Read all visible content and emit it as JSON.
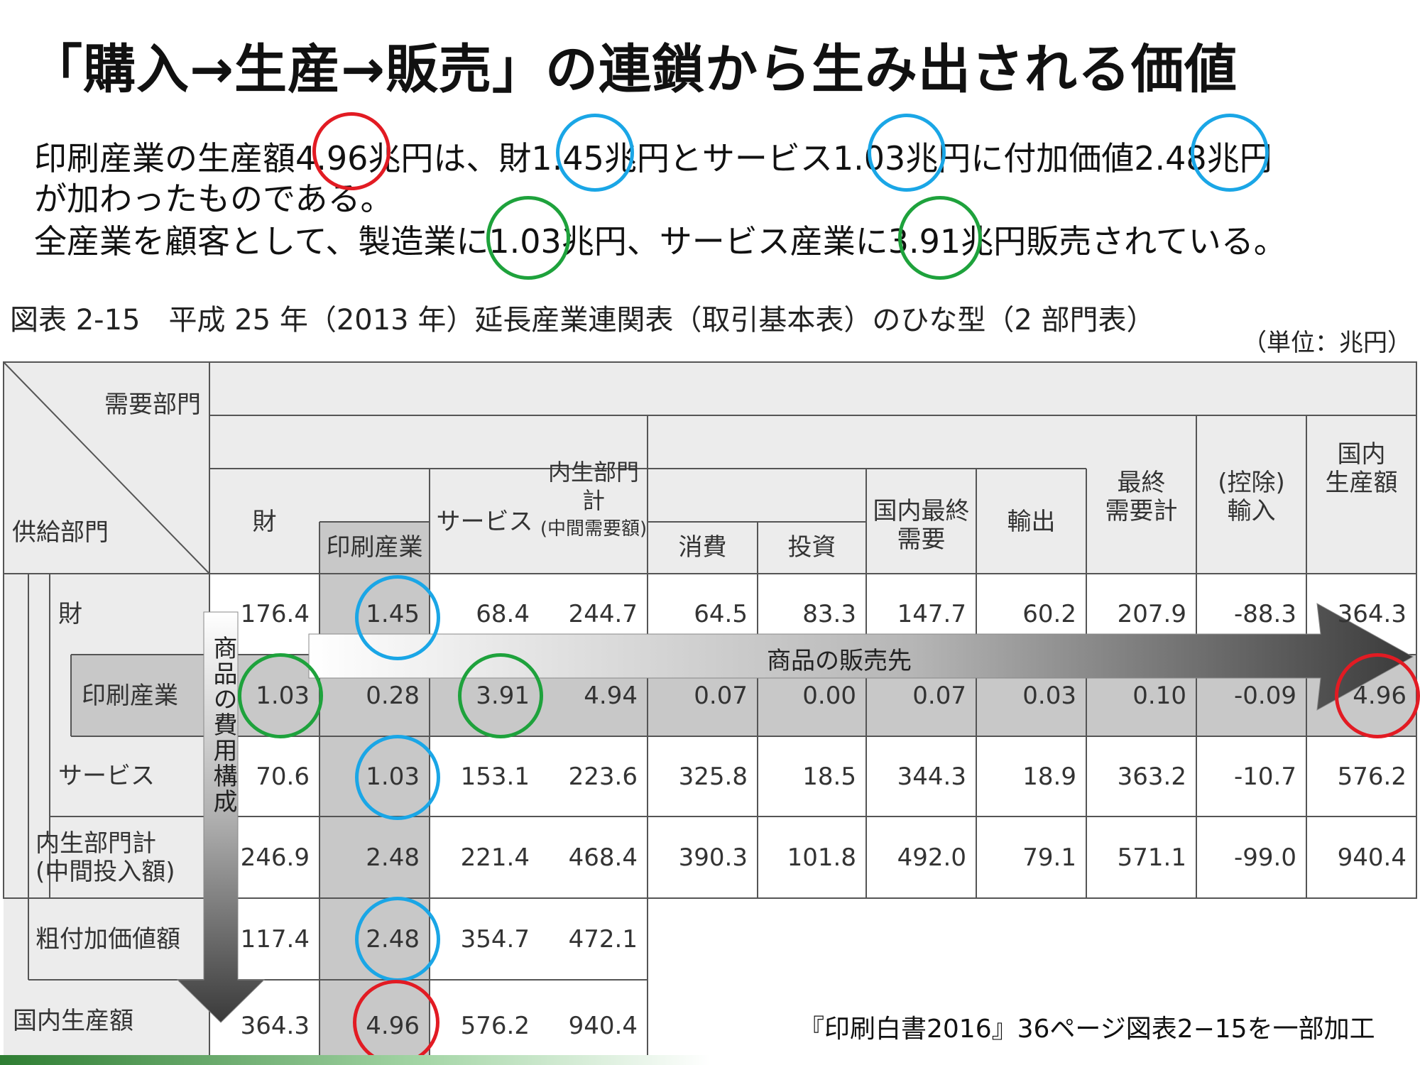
{
  "title": "「購入→生産→販売」の連鎖から生み出される価値",
  "paragraph": {
    "line1_a": "印刷産業の生産額",
    "line1_v1": "4.96",
    "line1_b": "兆円は、財",
    "line1_v2": "1.45",
    "line1_c": "兆円とサービス",
    "line1_v3": "1.03",
    "line1_d": "兆円に付加価値",
    "line1_v4": "2.48",
    "line1_e": "兆円",
    "line2": "が加わったものである。",
    "line3_a": "全産業を顧客として、製造業に",
    "line3_v1": "1.03",
    "line3_b": "兆円、サービス産業に",
    "line3_v2": "3.91",
    "line3_c": "兆円販売されている。"
  },
  "caption": "図表 2-15　平成 25 年（2013 年）延長産業連関表（取引基本表）のひな型（2 部門表）",
  "unit": "（単位：兆円）",
  "table": {
    "corner_demand": "需要部門",
    "corner_supply": "供給部門",
    "col_zai": "財",
    "col_insatsu": "印刷産業",
    "col_service": "サービス",
    "col_naisei_1": "内生部門計",
    "col_naisei_2": "(中間需要額)",
    "col_shohi": "消費",
    "col_toshi": "投資",
    "col_kokunai_final_1": "国内最終",
    "col_kokunai_final_2": "需要",
    "col_yushutsu": "輸出",
    "col_final_total_1": "最終",
    "col_final_total_2": "需要計",
    "col_import_1": "(控除)",
    "col_import_2": "輸入",
    "col_domestic_1": "国内",
    "col_domestic_2": "生産額",
    "rows": [
      {
        "label": "財",
        "values": [
          "176.4",
          "1.45",
          "68.4",
          "244.7",
          "64.5",
          "83.3",
          "147.7",
          "60.2",
          "207.9",
          "-88.3",
          "364.3"
        ]
      },
      {
        "label": "印刷産業",
        "values": [
          "1.03",
          "0.28",
          "3.91",
          "4.94",
          "0.07",
          "0.00",
          "0.07",
          "0.03",
          "0.10",
          "-0.09",
          "4.96"
        ]
      },
      {
        "label": "サービス",
        "values": [
          "70.6",
          "1.03",
          "153.1",
          "223.6",
          "325.8",
          "18.5",
          "344.3",
          "18.9",
          "363.2",
          "-10.7",
          "576.2"
        ]
      },
      {
        "label_1": "内生部門計",
        "label_2": "(中間投入額)",
        "values": [
          "246.9",
          "2.48",
          "221.4",
          "468.4",
          "390.3",
          "101.8",
          "492.0",
          "79.1",
          "571.1",
          "-99.0",
          "940.4"
        ]
      },
      {
        "label": "粗付加価値額",
        "values": [
          "117.4",
          "2.48",
          "354.7",
          "472.1"
        ]
      },
      {
        "label": "国内生産額",
        "values": [
          "364.3",
          "4.96",
          "576.2",
          "940.4"
        ]
      }
    ],
    "arrow_sales": "商品の販売先",
    "arrow_cost": "商品の費用構成"
  },
  "source": "『印刷白書2016』36ページ図表2−15を一部加工",
  "colors": {
    "red": "#e21b23",
    "blue": "#1aa6e6",
    "green": "#1ea23c",
    "highlight": "#c8c8c8"
  }
}
